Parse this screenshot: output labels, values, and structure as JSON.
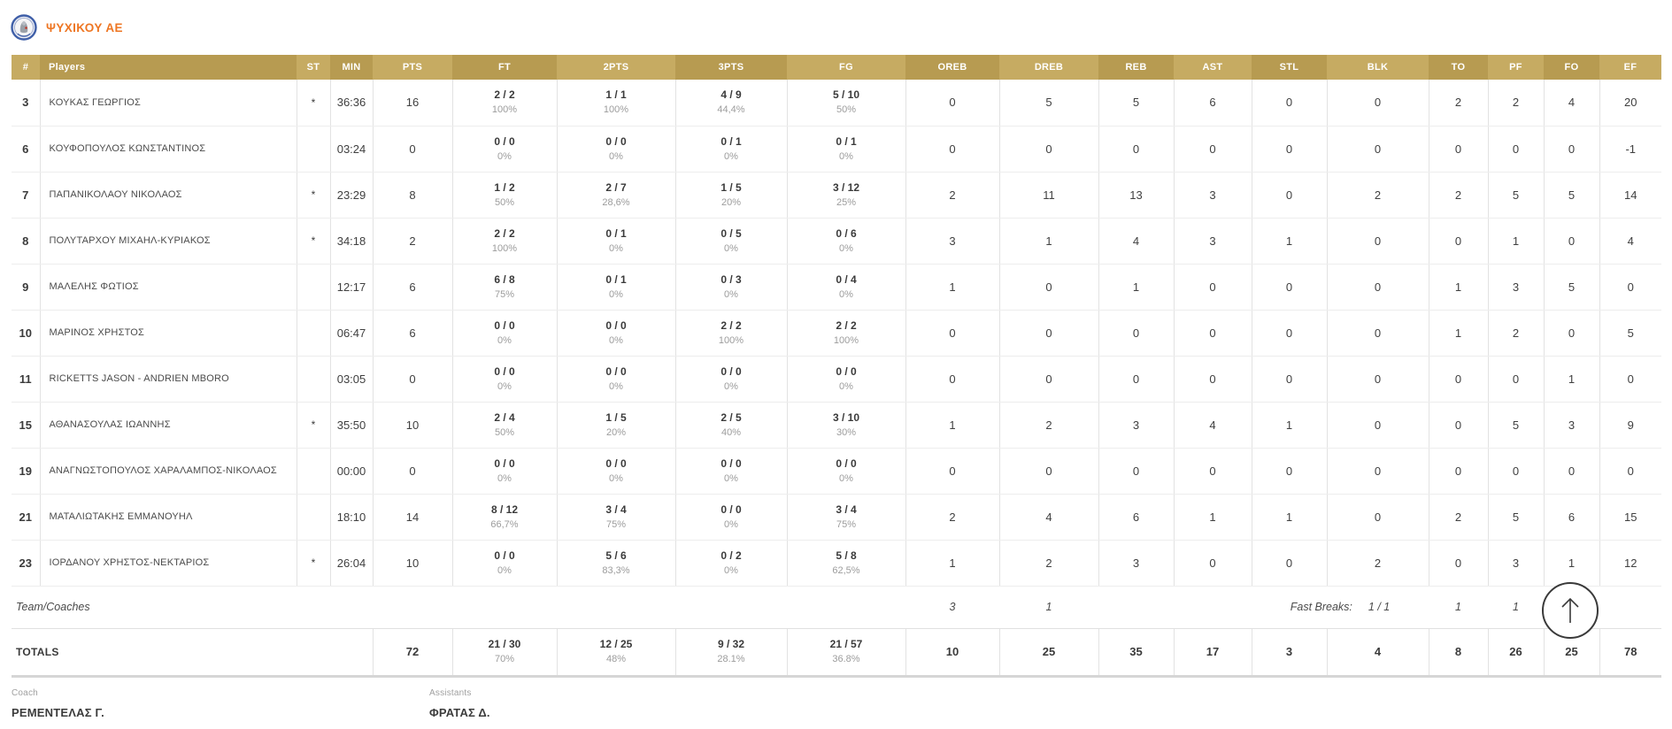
{
  "team": {
    "name": "ΨΥΧΙΚΟΥ ΑΕ",
    "logo_icon": "team-crest-icon",
    "accent_color": "#ee7623"
  },
  "colors": {
    "header_gold_dark": "#b79b51",
    "header_gold_light": "#c6ab62",
    "stat_text": "#404040",
    "percent_text": "#9c9c9c"
  },
  "table": {
    "columns": [
      "#",
      "Players",
      "ST",
      "MIN",
      "PTS",
      "FT",
      "2PTS",
      "3PTS",
      "FG",
      "OREB",
      "DREB",
      "REB",
      "AST",
      "STL",
      "BLK",
      "TO",
      "PF",
      "FO",
      "EF"
    ],
    "rows": [
      {
        "num": "3",
        "name": "ΚΟΥΚΑΣ ΓΕΩΡΓΙΟΣ",
        "st": "*",
        "min": "36:36",
        "pts": "16",
        "ft": [
          "2 / 2",
          "100%"
        ],
        "p2": [
          "1 / 1",
          "100%"
        ],
        "p3": [
          "4 / 9",
          "44,4%"
        ],
        "fg": [
          "5 / 10",
          "50%"
        ],
        "stats": [
          "0",
          "5",
          "5",
          "6",
          "0",
          "0",
          "2",
          "2",
          "4",
          "20"
        ]
      },
      {
        "num": "6",
        "name": "ΚΟΥΦΟΠΟΥΛΟΣ ΚΩΝΣΤΑΝΤΙΝΟΣ",
        "st": "",
        "min": "03:24",
        "pts": "0",
        "ft": [
          "0 / 0",
          "0%"
        ],
        "p2": [
          "0 / 0",
          "0%"
        ],
        "p3": [
          "0 / 1",
          "0%"
        ],
        "fg": [
          "0 / 1",
          "0%"
        ],
        "stats": [
          "0",
          "0",
          "0",
          "0",
          "0",
          "0",
          "0",
          "0",
          "0",
          "-1"
        ]
      },
      {
        "num": "7",
        "name": "ΠΑΠΑΝΙΚΟΛΑΟΥ ΝΙΚΟΛΑΟΣ",
        "st": "*",
        "min": "23:29",
        "pts": "8",
        "ft": [
          "1 / 2",
          "50%"
        ],
        "p2": [
          "2 / 7",
          "28,6%"
        ],
        "p3": [
          "1 / 5",
          "20%"
        ],
        "fg": [
          "3 / 12",
          "25%"
        ],
        "stats": [
          "2",
          "11",
          "13",
          "3",
          "0",
          "2",
          "2",
          "5",
          "5",
          "14"
        ]
      },
      {
        "num": "8",
        "name": "ΠΟΛΥΤΑΡΧΟΥ ΜΙΧΑΗΛ-ΚΥΡΙΑΚΟΣ",
        "st": "*",
        "min": "34:18",
        "pts": "2",
        "ft": [
          "2 / 2",
          "100%"
        ],
        "p2": [
          "0 / 1",
          "0%"
        ],
        "p3": [
          "0 / 5",
          "0%"
        ],
        "fg": [
          "0 / 6",
          "0%"
        ],
        "stats": [
          "3",
          "1",
          "4",
          "3",
          "1",
          "0",
          "0",
          "1",
          "0",
          "4"
        ]
      },
      {
        "num": "9",
        "name": "ΜΑΛΕΛΗΣ ΦΩΤΙΟΣ",
        "st": "",
        "min": "12:17",
        "pts": "6",
        "ft": [
          "6 / 8",
          "75%"
        ],
        "p2": [
          "0 / 1",
          "0%"
        ],
        "p3": [
          "0 / 3",
          "0%"
        ],
        "fg": [
          "0 / 4",
          "0%"
        ],
        "stats": [
          "1",
          "0",
          "1",
          "0",
          "0",
          "0",
          "1",
          "3",
          "5",
          "0"
        ]
      },
      {
        "num": "10",
        "name": "ΜΑΡΙΝΟΣ ΧΡΗΣΤΟΣ",
        "st": "",
        "min": "06:47",
        "pts": "6",
        "ft": [
          "0 / 0",
          "0%"
        ],
        "p2": [
          "0 / 0",
          "0%"
        ],
        "p3": [
          "2 / 2",
          "100%"
        ],
        "fg": [
          "2 / 2",
          "100%"
        ],
        "stats": [
          "0",
          "0",
          "0",
          "0",
          "0",
          "0",
          "1",
          "2",
          "0",
          "5"
        ]
      },
      {
        "num": "11",
        "name": "RICKETTS JASON - ANDRIEN MBORO",
        "st": "",
        "min": "03:05",
        "pts": "0",
        "ft": [
          "0 / 0",
          "0%"
        ],
        "p2": [
          "0 / 0",
          "0%"
        ],
        "p3": [
          "0 / 0",
          "0%"
        ],
        "fg": [
          "0 / 0",
          "0%"
        ],
        "stats": [
          "0",
          "0",
          "0",
          "0",
          "0",
          "0",
          "0",
          "0",
          "1",
          "0"
        ]
      },
      {
        "num": "15",
        "name": "ΑΘΑΝΑΣΟΥΛΑΣ ΙΩΑΝΝΗΣ",
        "st": "*",
        "min": "35:50",
        "pts": "10",
        "ft": [
          "2 / 4",
          "50%"
        ],
        "p2": [
          "1 / 5",
          "20%"
        ],
        "p3": [
          "2 / 5",
          "40%"
        ],
        "fg": [
          "3 / 10",
          "30%"
        ],
        "stats": [
          "1",
          "2",
          "3",
          "4",
          "1",
          "0",
          "0",
          "5",
          "3",
          "9"
        ]
      },
      {
        "num": "19",
        "name": "ΑΝΑΓΝΩΣΤΟΠΟΥΛΟΣ ΧΑΡΑΛΑΜΠΟΣ-ΝΙΚΟΛΑΟΣ",
        "st": "",
        "min": "00:00",
        "pts": "0",
        "ft": [
          "0 / 0",
          "0%"
        ],
        "p2": [
          "0 / 0",
          "0%"
        ],
        "p3": [
          "0 / 0",
          "0%"
        ],
        "fg": [
          "0 / 0",
          "0%"
        ],
        "stats": [
          "0",
          "0",
          "0",
          "0",
          "0",
          "0",
          "0",
          "0",
          "0",
          "0"
        ]
      },
      {
        "num": "21",
        "name": "ΜΑΤΑΛΙΩΤΑΚΗΣ ΕΜΜΑΝΟΥΗΛ",
        "st": "",
        "min": "18:10",
        "pts": "14",
        "ft": [
          "8 / 12",
          "66,7%"
        ],
        "p2": [
          "3 / 4",
          "75%"
        ],
        "p3": [
          "0 / 0",
          "0%"
        ],
        "fg": [
          "3 / 4",
          "75%"
        ],
        "stats": [
          "2",
          "4",
          "6",
          "1",
          "1",
          "0",
          "2",
          "5",
          "6",
          "15"
        ]
      },
      {
        "num": "23",
        "name": "ΙΟΡΔΑΝΟΥ ΧΡΗΣΤΟΣ-ΝΕΚΤΑΡΙΟΣ",
        "st": "*",
        "min": "26:04",
        "pts": "10",
        "ft": [
          "0 / 0",
          "0%"
        ],
        "p2": [
          "5 / 6",
          "83,3%"
        ],
        "p3": [
          "0 / 2",
          "0%"
        ],
        "fg": [
          "5 / 8",
          "62,5%"
        ],
        "stats": [
          "1",
          "2",
          "3",
          "0",
          "0",
          "2",
          "0",
          "3",
          "1",
          "12"
        ]
      }
    ],
    "team_row": {
      "label": "Team/Coaches",
      "oreb": "3",
      "dreb": "1",
      "fast_breaks_label": "Fast Breaks:",
      "fast_breaks_value": "1 / 1",
      "to": "1",
      "pf": "1"
    },
    "totals": {
      "label": "TOTALS",
      "pts": "72",
      "ft": [
        "21 / 30",
        "70%"
      ],
      "p2": [
        "12 / 25",
        "48%"
      ],
      "p3": [
        "9 / 32",
        "28.1%"
      ],
      "fg": [
        "21 / 57",
        "36.8%"
      ],
      "stats": [
        "10",
        "25",
        "35",
        "17",
        "3",
        "4",
        "8",
        "26",
        "25",
        "78"
      ]
    }
  },
  "footer": {
    "coach_label": "Coach",
    "coach_name": "ΡΕΜΕΝΤΕΛΑΣ Γ.",
    "assistants_label": "Assistants",
    "assistants_name": "ΦΡΑΤΑΣ Δ."
  },
  "icons": {
    "scroll_top": "up-arrow-circle-icon"
  }
}
